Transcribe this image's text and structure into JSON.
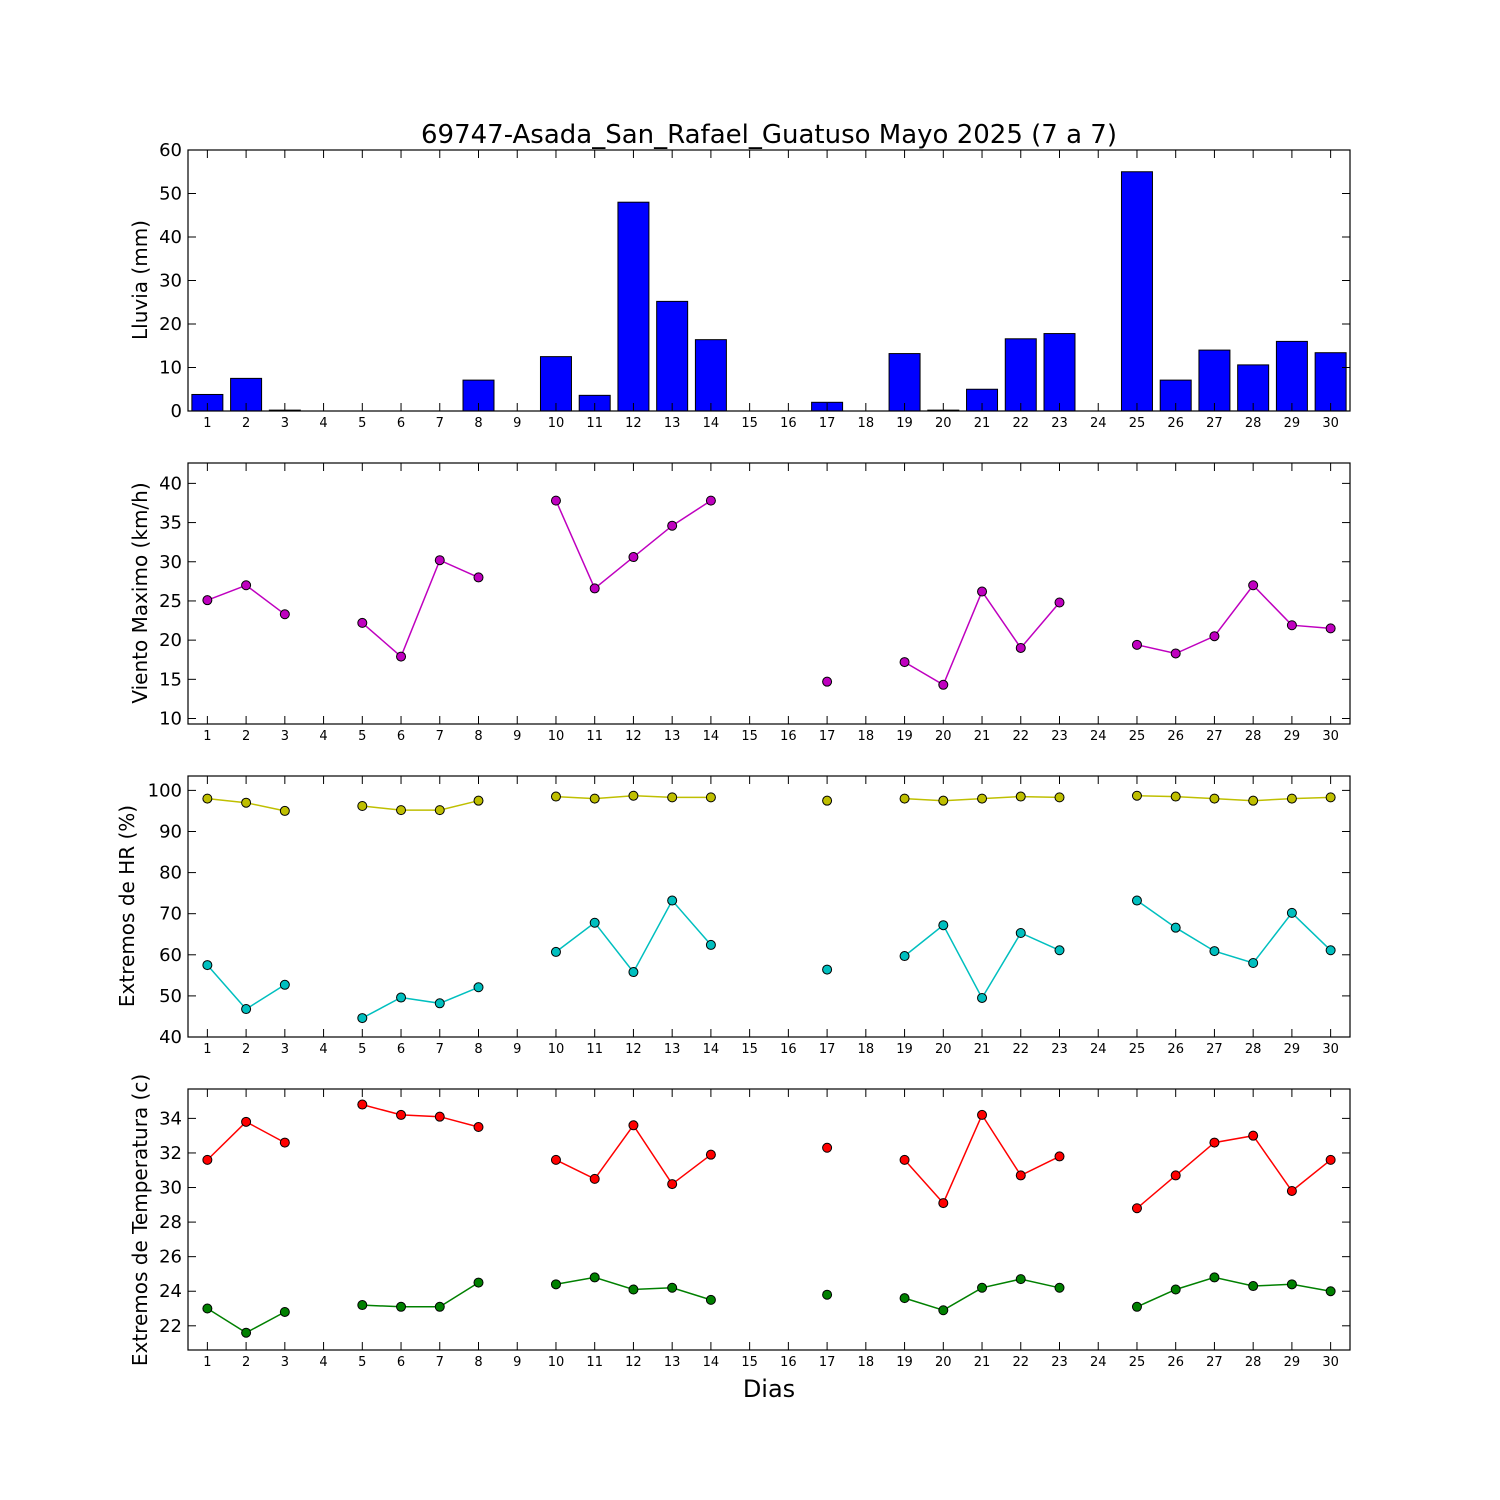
{
  "figure": {
    "title": "69747-Asada_San_Rafael_Guatuso Mayo 2025  (7 a 7)",
    "xlabel": "Dias",
    "days": [
      1,
      2,
      3,
      4,
      5,
      6,
      7,
      8,
      9,
      10,
      11,
      12,
      13,
      14,
      15,
      16,
      17,
      18,
      19,
      20,
      21,
      22,
      23,
      24,
      25,
      26,
      27,
      28,
      29,
      30
    ]
  },
  "chart_data": [
    {
      "type": "bar",
      "ylabel": "Lluvia (mm)",
      "ylim": [
        0,
        60
      ],
      "yticks": [
        0,
        10,
        20,
        30,
        40,
        50,
        60
      ],
      "x": [
        1,
        2,
        3,
        4,
        5,
        6,
        7,
        8,
        9,
        10,
        11,
        12,
        13,
        14,
        15,
        16,
        17,
        18,
        19,
        20,
        21,
        22,
        23,
        24,
        25,
        26,
        27,
        28,
        29,
        30
      ],
      "series": [
        {
          "color": "#0000ff",
          "values": [
            3.8,
            7.5,
            0.2,
            0,
            0,
            0,
            0,
            7.1,
            0,
            12.5,
            3.6,
            48,
            25.2,
            16.4,
            0,
            0,
            2.0,
            0,
            13.2,
            0.2,
            5.0,
            16.6,
            17.8,
            0,
            55,
            7.1,
            14.0,
            10.6,
            16.0,
            13.4
          ]
        }
      ]
    },
    {
      "type": "line",
      "ylabel": "Viento Maximo (km/h)",
      "ylim": [
        9.3,
        42.6
      ],
      "yticks": [
        10,
        15,
        20,
        25,
        30,
        35,
        40
      ],
      "x": [
        1,
        2,
        3,
        4,
        5,
        6,
        7,
        8,
        9,
        10,
        11,
        12,
        13,
        14,
        15,
        16,
        17,
        18,
        19,
        20,
        21,
        22,
        23,
        24,
        25,
        26,
        27,
        28,
        29,
        30
      ],
      "series": [
        {
          "color": "#bf00bf",
          "values": [
            25.1,
            27.0,
            23.3,
            null,
            22.2,
            17.9,
            30.2,
            28.0,
            null,
            37.8,
            26.6,
            30.6,
            34.6,
            37.8,
            null,
            null,
            14.7,
            null,
            17.2,
            14.3,
            26.2,
            19.0,
            24.8,
            null,
            19.4,
            18.3,
            20.5,
            27.0,
            21.9,
            21.5
          ]
        }
      ]
    },
    {
      "type": "line",
      "ylabel": "Extremos de HR (%)",
      "ylim": [
        40,
        103.5
      ],
      "yticks": [
        40,
        50,
        60,
        70,
        80,
        90,
        100
      ],
      "x": [
        1,
        2,
        3,
        4,
        5,
        6,
        7,
        8,
        9,
        10,
        11,
        12,
        13,
        14,
        15,
        16,
        17,
        18,
        19,
        20,
        21,
        22,
        23,
        24,
        25,
        26,
        27,
        28,
        29,
        30
      ],
      "series": [
        {
          "color": "#bfbf00",
          "values": [
            98.0,
            97.0,
            95.0,
            null,
            96.2,
            95.2,
            95.2,
            97.5,
            null,
            98.5,
            98.0,
            98.7,
            98.3,
            98.3,
            null,
            null,
            97.5,
            null,
            98.0,
            97.5,
            98.0,
            98.5,
            98.3,
            null,
            98.7,
            98.5,
            98.0,
            97.5,
            98.0,
            98.3
          ]
        },
        {
          "color": "#00bfbf",
          "values": [
            57.5,
            46.8,
            52.7,
            null,
            44.6,
            49.6,
            48.2,
            52.1,
            null,
            60.7,
            67.8,
            55.8,
            73.2,
            62.4,
            null,
            null,
            56.4,
            null,
            59.7,
            67.2,
            49.5,
            65.3,
            61.1,
            null,
            73.2,
            66.6,
            60.9,
            58.0,
            70.2,
            61.1
          ]
        }
      ]
    },
    {
      "type": "line",
      "ylabel": "Extremos de Temperatura (c)",
      "ylim": [
        20.6,
        35.7
      ],
      "yticks": [
        22,
        24,
        26,
        28,
        30,
        32,
        34
      ],
      "x": [
        1,
        2,
        3,
        4,
        5,
        6,
        7,
        8,
        9,
        10,
        11,
        12,
        13,
        14,
        15,
        16,
        17,
        18,
        19,
        20,
        21,
        22,
        23,
        24,
        25,
        26,
        27,
        28,
        29,
        30
      ],
      "series": [
        {
          "color": "#ff0000",
          "values": [
            31.6,
            33.8,
            32.6,
            null,
            34.8,
            34.2,
            34.1,
            33.5,
            null,
            31.6,
            30.5,
            33.6,
            30.2,
            31.9,
            null,
            null,
            32.3,
            null,
            31.6,
            29.1,
            34.2,
            30.7,
            31.8,
            null,
            28.8,
            30.7,
            32.6,
            33.0,
            29.8,
            31.6
          ]
        },
        {
          "color": "#008000",
          "values": [
            23.0,
            21.6,
            22.8,
            null,
            23.2,
            23.1,
            23.1,
            24.5,
            null,
            24.4,
            24.8,
            24.1,
            24.2,
            23.5,
            null,
            null,
            23.8,
            null,
            23.6,
            22.9,
            24.2,
            24.7,
            24.2,
            null,
            23.1,
            24.1,
            24.8,
            24.3,
            24.4,
            24.0
          ]
        }
      ]
    }
  ]
}
